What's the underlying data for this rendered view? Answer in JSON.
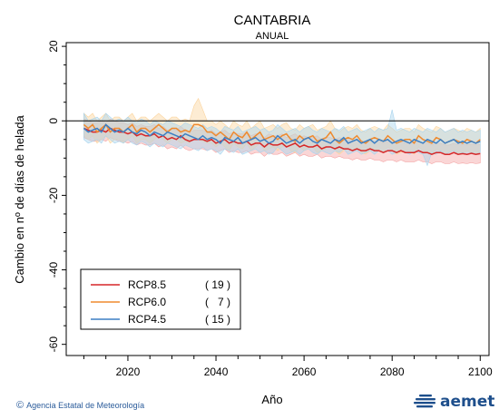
{
  "header": {
    "title": "CANTABRIA",
    "subtitle": "ANUAL"
  },
  "footer": {
    "agency": "Agencia Estatal de Meteorología",
    "copyright_symbol": "©",
    "brand": "aemet",
    "brand_color": "#1e4f8c"
  },
  "chart_data": {
    "type": "line",
    "title": "CANTABRIA",
    "subtitle": "ANUAL",
    "xlabel": "Año",
    "ylabel": "Cambio en nº de días de helada",
    "xlim": [
      2006,
      2102
    ],
    "ylim": [
      -63,
      21
    ],
    "x_ticks": [
      2020,
      2040,
      2060,
      2080,
      2100
    ],
    "y_ticks": [
      20,
      0,
      -20,
      -40,
      -60
    ],
    "reference_line": 0,
    "legend_placement": "bottom-left",
    "series": [
      {
        "name": "RCP8.5",
        "count": "( 19 )",
        "color": "#d62728",
        "band_color": "#f4a3a3",
        "start": 2010,
        "values": [
          -2,
          -2.5,
          -3,
          -3,
          -2.5,
          -3,
          -2,
          -2.5,
          -3,
          -3,
          -3.5,
          -3,
          -4,
          -3.5,
          -4,
          -4,
          -3.5,
          -4.5,
          -4,
          -5,
          -4.5,
          -5,
          -4,
          -5,
          -5.5,
          -5,
          -5,
          -5,
          -5.5,
          -5,
          -6,
          -5.5,
          -5,
          -6,
          -5.5,
          -6,
          -6,
          -5.5,
          -6.5,
          -6,
          -6,
          -7,
          -6,
          -6.5,
          -6.5,
          -6,
          -7,
          -6.5,
          -6,
          -7,
          -6.5,
          -7,
          -7,
          -6.5,
          -7.5,
          -7,
          -7,
          -7.5,
          -7,
          -7.5,
          -7.5,
          -8,
          -7.5,
          -8,
          -8,
          -7.5,
          -8,
          -8,
          -8.5,
          -8,
          -8,
          -8.5,
          -8,
          -8.5,
          -8.5,
          -8.5,
          -8,
          -8.5,
          -8.5,
          -9,
          -8.5,
          -8.5,
          -9,
          -9,
          -8.5,
          -9,
          -8.8,
          -9,
          -8.7,
          -9,
          -8.8
        ],
        "low": [
          -4.5,
          -5,
          -5.5,
          -5.5,
          -5,
          -5.5,
          -4.5,
          -5,
          -5.5,
          -5.5,
          -6,
          -5.5,
          -6.5,
          -6,
          -6.5,
          -6.5,
          -6,
          -7,
          -6.5,
          -7.5,
          -7,
          -7.5,
          -6.5,
          -7.5,
          -8,
          -7.5,
          -7.5,
          -7.5,
          -8,
          -7.5,
          -8.5,
          -8,
          -7.5,
          -8.5,
          -8,
          -8.5,
          -8.5,
          -8,
          -9,
          -8.5,
          -8.5,
          -9.5,
          -8.5,
          -9,
          -9,
          -8.5,
          -9.5,
          -9,
          -8.5,
          -9.5,
          -9,
          -9.5,
          -9.5,
          -9,
          -10,
          -9.5,
          -9.5,
          -10,
          -9.5,
          -10,
          -10,
          -10.5,
          -10,
          -10.5,
          -10.5,
          -10,
          -10.5,
          -10.5,
          -11,
          -10.5,
          -10.5,
          -11,
          -10.5,
          -11,
          -11,
          -11,
          -10.5,
          -11,
          -11,
          -11.5,
          -11,
          -11,
          -11.5,
          -11.5,
          -11,
          -11.5,
          -11.3,
          -11.5,
          -11.2,
          -11.5,
          -11.3
        ],
        "high": [
          0.5,
          0,
          -0.5,
          -0.5,
          0,
          -0.5,
          0.5,
          0,
          -0.5,
          -0.5,
          -1,
          -0.5,
          -1.5,
          -1,
          -1.5,
          -1.5,
          -1,
          -2,
          -1.5,
          -2.5,
          -2,
          -2.5,
          -1.5,
          -2.5,
          -3,
          -2.5,
          -2.5,
          -2.5,
          -3,
          -2.5,
          -3.5,
          -3,
          -2.5,
          -3.5,
          -3,
          -3.5,
          -3.5,
          -3,
          -4,
          -3.5,
          -3.5,
          -4.5,
          -3.5,
          -4,
          -4,
          -3.5,
          -4.5,
          -4,
          -3.5,
          -4.5,
          -4,
          -4.5,
          -4.5,
          -4,
          -5,
          -4.5,
          -4.5,
          -5,
          -4.5,
          -5,
          -5,
          -5.5,
          -5,
          -5.5,
          -5.5,
          -5,
          -5.5,
          -5.5,
          -6,
          -5.5,
          -5.5,
          -6,
          -5.5,
          -6,
          -6,
          -6,
          -5.5,
          -6,
          -6,
          -6.5,
          -6,
          -6,
          -6.5,
          -6.5,
          -6,
          -6.5,
          -6.3,
          -6.5,
          -6.2,
          -6.5,
          -6.3
        ]
      },
      {
        "name": "RCP6.0",
        "count": "(   7 )",
        "color": "#ef8a2e",
        "band_color": "#fbd49e",
        "start": 2010,
        "values": [
          -1,
          -2,
          -1,
          -3,
          -2,
          -1,
          -3,
          -2,
          -2,
          -3,
          -2,
          -1,
          -3,
          -2,
          -2,
          -3,
          -2,
          -1,
          -2,
          -3,
          -2,
          -2,
          -3,
          -2.5,
          -3,
          -1,
          -1,
          -1.5,
          -3,
          -3,
          -4,
          -3,
          -4,
          -5,
          -3,
          -4,
          -4.5,
          -3,
          -5,
          -4,
          -3,
          -5,
          -4.5,
          -4,
          -5,
          -4,
          -3.5,
          -5,
          -5.5,
          -4,
          -5,
          -4.5,
          -4,
          -5.5,
          -5,
          -4.5,
          -3,
          -5,
          -6,
          -5,
          -4.5,
          -5,
          -4,
          -5.5,
          -6,
          -5,
          -4.5,
          -5,
          -5.5,
          -4,
          -5,
          -6,
          -5.5,
          -5,
          -5,
          -6,
          -4,
          -5,
          -5.5,
          -6,
          -4.5,
          -5,
          -6,
          -5.5,
          -5,
          -5.5,
          -6,
          -5,
          -5.5,
          -6,
          -5
        ],
        "low": [
          -4,
          -5,
          -4,
          -6,
          -5,
          -4,
          -6,
          -5,
          -5,
          -6,
          -5,
          -4,
          -6,
          -5,
          -5,
          -6,
          -5,
          -4,
          -5,
          -6,
          -5,
          -5,
          -6,
          -5.5,
          -6,
          -4,
          -5,
          -5.5,
          -6,
          -6,
          -7,
          -6,
          -7,
          -8,
          -6,
          -7,
          -7.5,
          -6,
          -8,
          -7,
          -6,
          -8,
          -7.5,
          -7,
          -8,
          -7,
          -6.5,
          -8,
          -8.5,
          -7,
          -8,
          -7.5,
          -7,
          -8.5,
          -8,
          -7.5,
          -6,
          -8,
          -9,
          -8,
          -7.5,
          -8,
          -7,
          -8.5,
          -9,
          -8,
          -7.5,
          -8,
          -8.5,
          -7,
          -8,
          -9,
          -8.5,
          -8,
          -8,
          -9,
          -7,
          -8,
          -8.5,
          -9,
          -7.5,
          -8,
          -9,
          -8.5,
          -8,
          -8.5,
          -9,
          -8,
          -8.5,
          -9,
          -8
        ],
        "high": [
          2,
          1,
          2,
          0,
          1,
          2,
          0,
          1,
          1,
          0,
          1,
          2,
          0,
          1,
          1,
          0,
          1,
          2,
          1,
          0,
          1,
          1,
          0,
          0.5,
          0,
          4,
          6,
          3,
          0,
          0,
          -1,
          0,
          -1,
          -2,
          0,
          -1,
          -1.5,
          0,
          -2,
          -1,
          0,
          -2,
          -1.5,
          -1,
          -2,
          -1,
          -0.5,
          -2,
          -2.5,
          -1,
          -2,
          -1.5,
          -1,
          -2.5,
          -2,
          -1.5,
          0,
          -2,
          -3,
          -2,
          -1.5,
          -2,
          -1,
          -2.5,
          -3,
          -2,
          -1.5,
          -2,
          -2.5,
          -1,
          -2,
          -3,
          -2.5,
          -2,
          -2,
          -3,
          -1,
          -2,
          -2.5,
          -3,
          -1.5,
          -2,
          -3,
          -2.5,
          -2,
          -2.5,
          -3,
          -2,
          -2.5,
          -3,
          -2
        ]
      },
      {
        "name": "RCP4.5",
        "count": "( 15 )",
        "color": "#3b7fc4",
        "band_color": "#a8d4ee",
        "start": 2010,
        "values": [
          -2,
          -3,
          -2.5,
          -2,
          -3,
          -1,
          -2,
          -3,
          -2.5,
          -3,
          -2,
          -3,
          -3.5,
          -2.5,
          -3,
          -4,
          -3,
          -3.5,
          -4,
          -3,
          -3.5,
          -4,
          -4.5,
          -3.5,
          -4,
          -4.5,
          -5,
          -4,
          -5,
          -4.5,
          -5,
          -6,
          -4.5,
          -5,
          -5.5,
          -4.5,
          -6,
          -5.5,
          -5,
          -4.5,
          -5.5,
          -5,
          -6,
          -5.5,
          -4,
          -5,
          -6,
          -5.5,
          -5,
          -6,
          -5,
          -4.5,
          -5.5,
          -6,
          -5,
          -5.5,
          -6,
          -5,
          -5.5,
          -4.5,
          -6,
          -5.5,
          -5,
          -6,
          -5.5,
          -5,
          -6,
          -5,
          -5.5,
          -5,
          -6,
          -5.5,
          -5,
          -5.5,
          -6,
          -5,
          -5.5,
          -6,
          -5,
          -5.5,
          -6,
          -5,
          -6,
          -5.5,
          -5,
          -6,
          -5.5,
          -6,
          -5.5,
          -6,
          -5.5
        ],
        "low": [
          -5,
          -6,
          -5.5,
          -5,
          -6,
          -4,
          -5,
          -6,
          -5.5,
          -6,
          -5,
          -6,
          -6.5,
          -5.5,
          -6,
          -7,
          -6,
          -6.5,
          -7,
          -6,
          -6.5,
          -7,
          -7.5,
          -6.5,
          -7,
          -7.5,
          -8,
          -7,
          -8,
          -7.5,
          -8,
          -9,
          -7.5,
          -8,
          -8.5,
          -7.5,
          -9,
          -8.5,
          -8,
          -7.5,
          -8.5,
          -8,
          -9,
          -8.5,
          -7,
          -8,
          -9,
          -8.5,
          -8,
          -9,
          -8,
          -7.5,
          -8.5,
          -9,
          -8,
          -8.5,
          -9,
          -8,
          -8.5,
          -7.5,
          -9,
          -8.5,
          -8,
          -9,
          -8.5,
          -8,
          -9,
          -8,
          -8.5,
          -8,
          -9,
          -8.5,
          -8,
          -8.5,
          -9,
          -8,
          -8.5,
          -9,
          -12,
          -8.5,
          -9,
          -8,
          -9,
          -8.5,
          -8,
          -9,
          -8.5,
          -9,
          -8.5,
          -9,
          -8.5
        ],
        "high": [
          2,
          0,
          0.5,
          1,
          0,
          2,
          1,
          0,
          0.5,
          0,
          1,
          0,
          -0.5,
          0.5,
          0,
          -1,
          0,
          -0.5,
          -1,
          0,
          -0.5,
          -1,
          -1.5,
          -0.5,
          -1,
          -1.5,
          -2,
          -1,
          -2,
          -1.5,
          -2,
          -3,
          -1.5,
          -2,
          -2.5,
          -1.5,
          -3,
          -2.5,
          -2,
          -1.5,
          -2.5,
          -2,
          -3,
          -2.5,
          -1,
          -2,
          -3,
          -2.5,
          -2,
          -3,
          -2,
          -1.5,
          -2.5,
          -3,
          -2,
          -2.5,
          -3,
          -2,
          -2.5,
          -1.5,
          -3,
          -2.5,
          -2,
          -3,
          -2.5,
          -2,
          -3,
          -2,
          -2.5,
          -2,
          3,
          -2.5,
          -2,
          -2.5,
          -3,
          -2,
          -2.5,
          -3,
          -2,
          -2.5,
          -3,
          -2,
          -3,
          -2.5,
          -2,
          -3,
          -2.5,
          -3,
          -2.5,
          -3,
          -2.5
        ]
      }
    ]
  }
}
